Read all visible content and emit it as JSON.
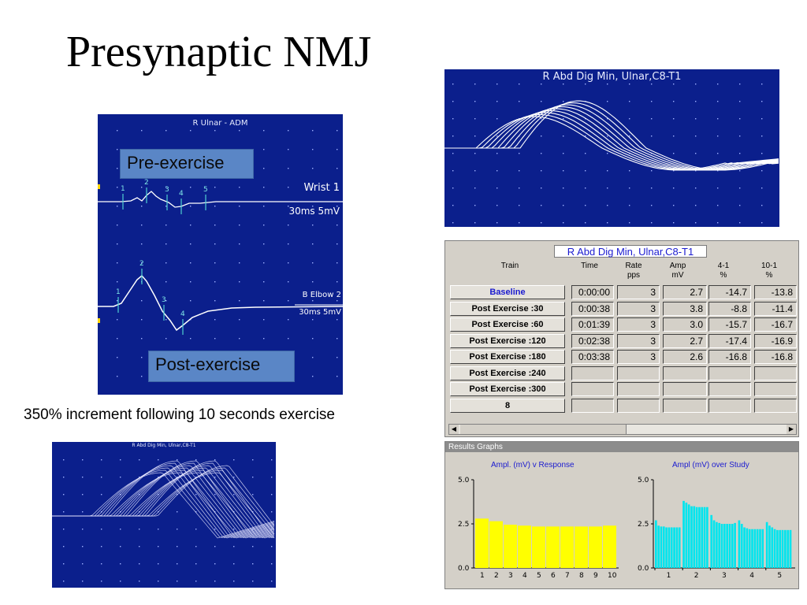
{
  "slide": {
    "title": "Presynaptic NMJ",
    "caption": "350% increment following 10 seconds exercise"
  },
  "main_panel": {
    "title": "R Ulnar - ADM",
    "callout_pre": "Pre-exercise",
    "callout_post": "Post-exercise",
    "trace1_label": "Wrist 1",
    "trace1_scale": "30ms 5mV",
    "trace2_label": "B Elbow 2",
    "trace2_scale": "30ms 5mV",
    "markers_trace1": [
      "1",
      "2",
      "3",
      "4",
      "5"
    ],
    "markers_trace2": [
      "1",
      "2",
      "3",
      "4"
    ]
  },
  "top_right_panel": {
    "title": "R Abd Dig Min, Ulnar,C8-T1"
  },
  "bottom_left_panel": {
    "title": "R Abd Dig Min, Ulnar,C8-T1"
  },
  "table": {
    "title": "R Abd Dig Min, Ulnar,C8-T1",
    "headers": {
      "train": "Train",
      "time": "Time",
      "rate": "Rate\npps",
      "amp": "Amp\nmV",
      "d41": "4-1\n%",
      "d101": "10-1\n%"
    },
    "rows": [
      {
        "label": "Baseline",
        "time": "0:00:00",
        "rate": "3",
        "amp": "2.7",
        "d41": "-14.7",
        "d101": "-13.8"
      },
      {
        "label": "Post Exercise :30",
        "time": "0:00:38",
        "rate": "3",
        "amp": "3.8",
        "d41": "-8.8",
        "d101": "-11.4"
      },
      {
        "label": "Post Exercise :60",
        "time": "0:01:39",
        "rate": "3",
        "amp": "3.0",
        "d41": "-15.7",
        "d101": "-16.7"
      },
      {
        "label": "Post Exercise :120",
        "time": "0:02:38",
        "rate": "3",
        "amp": "2.7",
        "d41": "-17.4",
        "d101": "-16.9"
      },
      {
        "label": "Post Exercise :180",
        "time": "0:03:38",
        "rate": "3",
        "amp": "2.6",
        "d41": "-16.8",
        "d101": "-16.8"
      },
      {
        "label": "Post Exercise :240",
        "time": "",
        "rate": "",
        "amp": "",
        "d41": "",
        "d101": ""
      },
      {
        "label": "Post Exercise :300",
        "time": "",
        "rate": "",
        "amp": "",
        "d41": "",
        "d101": ""
      },
      {
        "label": "8",
        "time": "",
        "rate": "",
        "amp": "",
        "d41": "",
        "d101": ""
      }
    ]
  },
  "results": {
    "panel_title": "Results Graphs",
    "colors": {
      "left": "#ffff00",
      "right": "#00e5ee"
    }
  },
  "chart_data": [
    {
      "type": "bar",
      "title": "Ampl. (mV) v Response",
      "categories": [
        "1",
        "2",
        "3",
        "4",
        "5",
        "6",
        "7",
        "8",
        "9",
        "10"
      ],
      "values": [
        2.8,
        2.65,
        2.45,
        2.4,
        2.35,
        2.35,
        2.35,
        2.35,
        2.35,
        2.4
      ],
      "ylim": [
        0,
        5
      ],
      "yticks": [
        "0.0",
        "2.5",
        "5.0"
      ]
    },
    {
      "type": "bar",
      "title": "Ampl (mV) over Study",
      "categories": [
        "1",
        "2",
        "3",
        "4",
        "5"
      ],
      "groups": [
        [
          2.7,
          2.4,
          2.35,
          2.35,
          2.3,
          2.3,
          2.3,
          2.3,
          2.3,
          2.3
        ],
        [
          3.8,
          3.7,
          3.6,
          3.5,
          3.5,
          3.45,
          3.45,
          3.45,
          3.45,
          3.45
        ],
        [
          3.0,
          2.7,
          2.6,
          2.55,
          2.5,
          2.5,
          2.5,
          2.5,
          2.5,
          2.55
        ],
        [
          2.7,
          2.5,
          2.3,
          2.25,
          2.2,
          2.2,
          2.2,
          2.2,
          2.2,
          2.2
        ],
        [
          2.6,
          2.4,
          2.3,
          2.2,
          2.15,
          2.15,
          2.15,
          2.15,
          2.15,
          2.15
        ]
      ],
      "ylim": [
        0,
        5
      ],
      "yticks": [
        "0.0",
        "2.5",
        "5.0"
      ]
    }
  ]
}
